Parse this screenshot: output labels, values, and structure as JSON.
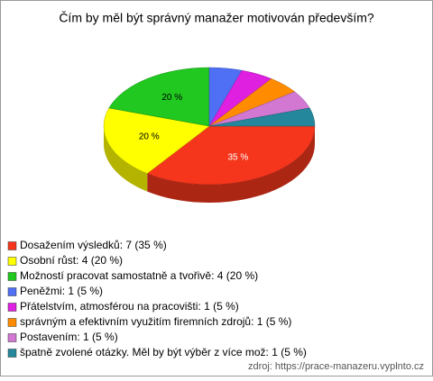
{
  "chart_data": {
    "type": "pie",
    "title": "Čím by měl být správný manažer motivován především?",
    "categories": [
      "Dosažením výsledků: 7 (35 %)",
      "Osobní růst: 4 (20 %)",
      "Možností pracovat samostatně a tvořivě: 4 (20 %)",
      "Peněžmi: 1 (5 %)",
      "Přátelstvím, atmosférou na pracovišti: 1 (5 %)",
      "správným a efektivním využitím firemních zdrojů: 1 (5 %)",
      "Postavením: 1 (5 %)",
      "špatně zvolené otázky. Měl by být výběr z více mož: 1 (5 %)"
    ],
    "values": [
      35,
      20,
      20,
      5,
      5,
      5,
      5,
      5
    ],
    "value_labels": [
      "35 %",
      "20 %",
      "20 %",
      null,
      null,
      null,
      null,
      null
    ],
    "colors": [
      "#f5361c",
      "#ffff00",
      "#20c820",
      "#4f6ff5",
      "#e020e0",
      "#ff8c00",
      "#d277d2",
      "#24879b"
    ],
    "source": "zdroj: https://prace-manazeru.vyplnto.cz"
  }
}
